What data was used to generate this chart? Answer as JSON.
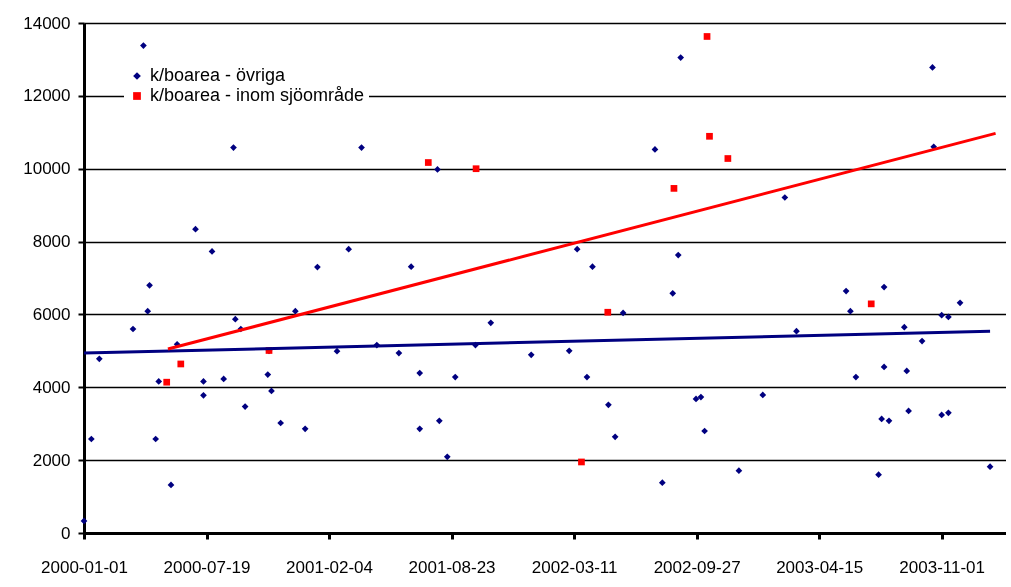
{
  "chart_data": {
    "type": "scatter",
    "xlim": [
      "2000-01-01",
      "2004-02-14"
    ],
    "xticks": [
      "2000-01-01",
      "2000-07-19",
      "2001-02-04",
      "2001-08-23",
      "2002-03-11",
      "2002-09-27",
      "2003-04-15",
      "2003-11-01"
    ],
    "ylim": [
      0,
      14000
    ],
    "yticks": [
      0,
      2000,
      4000,
      6000,
      8000,
      10000,
      12000,
      14000
    ],
    "grid": "y",
    "legend": "top left",
    "series": [
      {
        "name": "k/boarea - övriga",
        "marker": "diamond",
        "color": "#000080",
        "x": [
          "2000-01-01",
          "2000-01-13",
          "2000-01-26",
          "2000-03-21",
          "2000-04-07",
          "2000-04-14",
          "2000-04-17",
          "2000-04-27",
          "2000-05-02",
          "2000-05-22",
          "2000-06-01",
          "2000-07-01",
          "2000-07-14",
          "2000-07-14",
          "2000-07-28",
          "2000-08-16",
          "2000-09-01",
          "2000-09-04",
          "2000-09-13",
          "2000-09-20",
          "2000-10-27",
          "2000-10-29",
          "2000-11-02",
          "2000-11-17",
          "2000-12-11",
          "2000-12-27",
          "2001-01-16",
          "2001-02-17",
          "2001-03-08",
          "2001-03-29",
          "2001-04-23",
          "2001-05-29",
          "2001-06-18",
          "2001-07-02",
          "2001-07-02",
          "2001-07-31",
          "2001-08-03",
          "2001-08-16",
          "2001-08-29",
          "2001-10-01",
          "2001-10-26",
          "2001-12-31",
          "2002-03-03",
          "2002-03-16",
          "2002-04-01",
          "2002-04-10",
          "2002-05-06",
          "2002-05-17",
          "2002-05-30",
          "2002-07-21",
          "2002-08-02",
          "2002-08-19",
          "2002-08-28",
          "2002-09-01",
          "2002-09-26",
          "2002-10-04",
          "2002-10-10",
          "2002-12-05",
          "2003-01-13",
          "2003-02-18",
          "2003-03-09",
          "2003-05-29",
          "2003-06-05",
          "2003-06-14",
          "2003-07-21",
          "2003-07-26",
          "2003-07-30",
          "2003-07-30",
          "2003-08-07",
          "2003-09-01",
          "2003-09-05",
          "2003-09-08",
          "2003-09-30",
          "2003-10-17",
          "2003-10-19",
          "2003-11-01",
          "2003-11-01",
          "2003-11-12",
          "2003-11-12",
          "2003-12-01",
          "2004-01-19"
        ],
        "values": [
          330,
          2580,
          4780,
          5600,
          13380,
          6090,
          6800,
          2580,
          4160,
          1320,
          5180,
          8340,
          4160,
          3780,
          7730,
          4230,
          10580,
          5870,
          5600,
          3470,
          4350,
          5000,
          3900,
          3020,
          6090,
          2860,
          7300,
          4990,
          7790,
          10580,
          5160,
          4940,
          7310,
          4390,
          2860,
          9980,
          3080,
          2090,
          4280,
          5160,
          5770,
          4890,
          5000,
          7790,
          4280,
          7310,
          3520,
          2640,
          6040,
          10530,
          1380,
          6580,
          7630,
          13050,
          3680,
          3730,
          2800,
          1710,
          3790,
          9210,
          5540,
          6640,
          6090,
          4280,
          1600,
          3130,
          6750,
          4560,
          3080,
          5650,
          4450,
          3350,
          5270,
          12780,
          10600,
          5980,
          3240,
          5930,
          3300,
          6320,
          1820
        ]
      },
      {
        "name": "k/boarea - inom sjöområde",
        "marker": "square",
        "color": "#ff0000",
        "x": [
          "2000-05-15",
          "2000-06-07",
          "2000-10-29",
          "2001-07-16",
          "2001-10-02",
          "2002-03-23",
          "2002-05-05",
          "2002-08-21",
          "2002-10-14",
          "2002-10-18",
          "2002-11-17",
          "2003-07-09"
        ],
        "values": [
          4140,
          4640,
          5010,
          10170,
          10000,
          1950,
          6060,
          9460,
          13630,
          10890,
          10280,
          6290
        ]
      },
      {
        "type": "line",
        "color": "#000080",
        "x": [
          "2000-01-01",
          "2004-01-19"
        ],
        "values": [
          4940,
          5540
        ]
      },
      {
        "type": "line",
        "color": "#ff0000",
        "x": [
          "2000-05-17",
          "2004-01-28"
        ],
        "values": [
          5050,
          10970
        ]
      }
    ]
  }
}
